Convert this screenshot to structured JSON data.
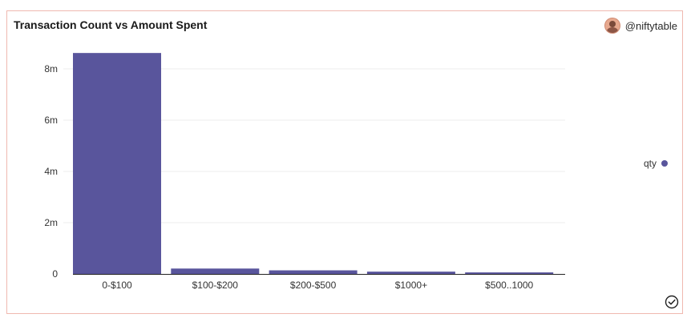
{
  "header": {
    "title": "Transaction Count vs Amount Spent",
    "username": "@niftytable",
    "avatar_icon": "user-avatar-icon",
    "status_icon": "check-circle-icon"
  },
  "colors": {
    "bar": "#59559c",
    "border": "#f0b9b0",
    "grid": "#eeeeee",
    "axis": "#222222"
  },
  "chart_data": {
    "type": "bar",
    "categories": [
      "0-$100",
      "$100-$200",
      "$200-$500",
      "$1000+",
      "$500..1000"
    ],
    "series": [
      {
        "name": "qty",
        "values": [
          8620000,
          210000,
          140000,
          90000,
          60000
        ]
      }
    ],
    "ylim": [
      0,
      8000000
    ],
    "yticks": [
      0,
      2000000,
      4000000,
      6000000,
      8000000
    ],
    "ytick_labels": [
      "0",
      "2m",
      "4m",
      "6m",
      "8m"
    ],
    "grid": true,
    "legend_position": "right"
  }
}
